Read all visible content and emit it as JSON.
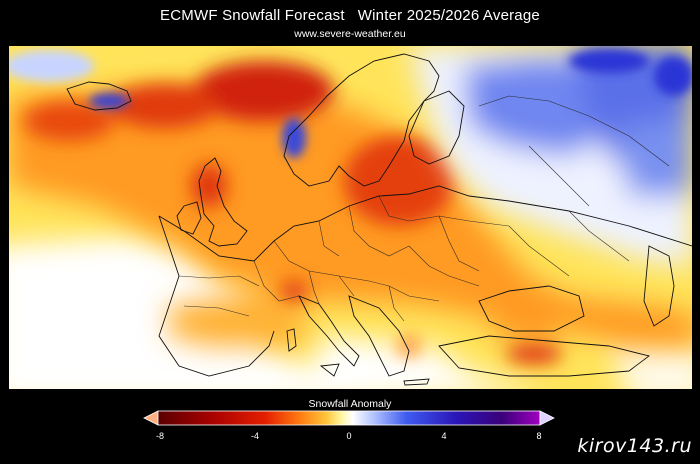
{
  "header": {
    "title": "ECMWF Snowfall Forecast   Winter 2025/2026 Average",
    "subtitle": "www.severe-weather.eu"
  },
  "map": {
    "region": "Europe",
    "projection": "lat-lon",
    "colors": {
      "strong_negative": "#b71c00",
      "negative": "#e84b0c",
      "moderate_negative": "#ff8a1c",
      "weak_negative": "#ffc43a",
      "slight_negative": "#fff07a",
      "neutral": "#ffffff",
      "slight_positive": "#d0dcff",
      "positive": "#6f86f0",
      "strong_positive": "#2a35d6"
    }
  },
  "colorbar": {
    "label": "Snowfall Anomaly",
    "min": -8,
    "max": 8,
    "ticks": [
      "-8",
      "-4",
      "0",
      "4",
      "8"
    ],
    "stops": [
      "#5a0000",
      "#a80000",
      "#e31e00",
      "#ff7a10",
      "#ffc43a",
      "#fff6a0",
      "#ffffff",
      "#b8c8ff",
      "#3f5cf0",
      "#2a16b8",
      "#3a007a",
      "#a000c0"
    ]
  },
  "watermark": "kirov143.ru"
}
